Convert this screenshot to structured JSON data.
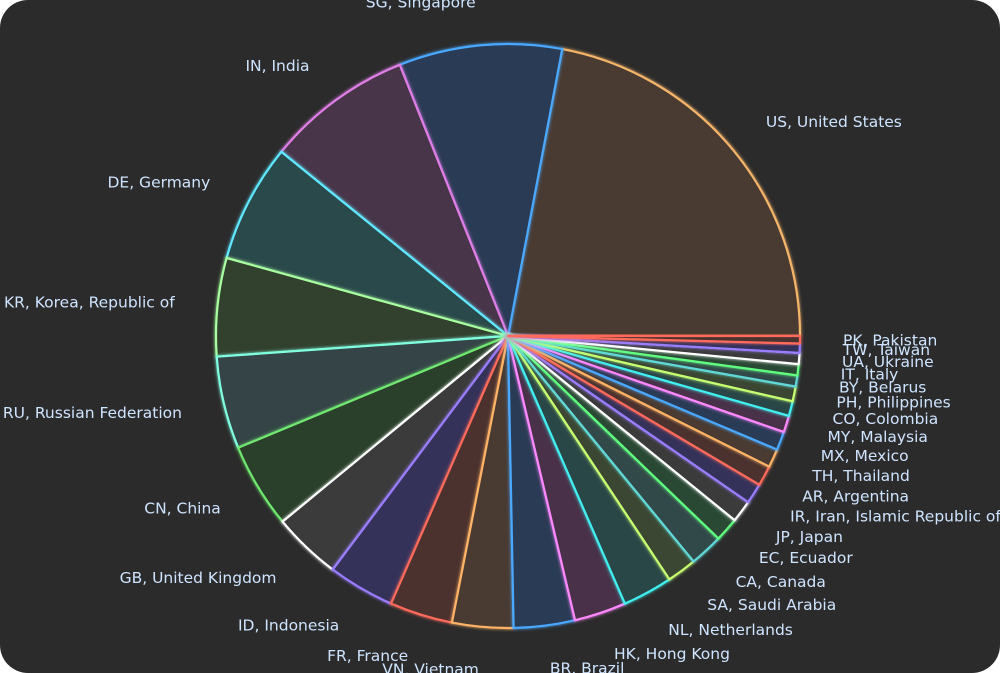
{
  "chart_data": {
    "type": "pie",
    "title": "",
    "start_angle_deg": 0,
    "direction": "counterclockwise",
    "slices": [
      {
        "label": "US, United States",
        "value": 21.5,
        "color": "#f5b56a",
        "fill": "#4a3a32"
      },
      {
        "label": "SG, Singapore",
        "value": 8.8,
        "color": "#48a8ff",
        "fill": "#2b3a55"
      },
      {
        "label": "IN, India",
        "value": 7.9,
        "color": "#e07ee8",
        "fill": "#4a3448"
      },
      {
        "label": "DE, Germany",
        "value": 6.4,
        "color": "#5fe8ff",
        "fill": "#2c4a4c"
      },
      {
        "label": "KR, Korea, Republic of",
        "value": 5.3,
        "color": "#a8ffa0",
        "fill": "#33402e"
      },
      {
        "label": "RU, Russian Federation",
        "value": 5.0,
        "color": "#80ffe0",
        "fill": "#344446"
      },
      {
        "label": "CN, China",
        "value": 4.6,
        "color": "#6fe86f",
        "fill": "#2b3f2b"
      },
      {
        "label": "GB, United Kingdom",
        "value": 3.7,
        "color": "#ffffff",
        "fill": "#3a3a3a"
      },
      {
        "label": "ID, Indonesia",
        "value": 3.6,
        "color": "#9a7cff",
        "fill": "#34335a"
      },
      {
        "label": "FR, France",
        "value": 3.4,
        "color": "#ff6a5a",
        "fill": "#4c302f"
      },
      {
        "label": "VN, Vietnam",
        "value": 3.3,
        "color": "#ffb366",
        "fill": "#4a3a30"
      },
      {
        "label": "BR, Brazil",
        "value": 3.3,
        "color": "#48a8ff",
        "fill": "#2c3b56"
      },
      {
        "label": "HK, Hong Kong",
        "value": 2.8,
        "color": "#ff88ff",
        "fill": "#4a3048"
      },
      {
        "label": "NL, Netherlands",
        "value": 2.7,
        "color": "#40f0f0",
        "fill": "#2b4646"
      },
      {
        "label": "SA, Saudi Arabia",
        "value": 1.6,
        "color": "#c8ff70",
        "fill": "#3a4630"
      },
      {
        "label": "CA, Canada",
        "value": 1.8,
        "color": "#60d8d8",
        "fill": "#32484a"
      },
      {
        "label": "EC, Ecuador",
        "value": 1.3,
        "color": "#60ff80",
        "fill": "#2c4a34"
      },
      {
        "label": "JP, Japan",
        "value": 1.2,
        "color": "#ffffff",
        "fill": "#3a3a3a"
      },
      {
        "label": "IR, Iran, Islamic Republic of",
        "value": 1.1,
        "color": "#9a7cff",
        "fill": "#34335a"
      },
      {
        "label": "AR, Argentina",
        "value": 1.1,
        "color": "#ff6a5a",
        "fill": "#4c302f"
      },
      {
        "label": "TH, Thailand",
        "value": 1.0,
        "color": "#ffb366",
        "fill": "#4a3a30"
      },
      {
        "label": "MX, Mexico",
        "value": 1.0,
        "color": "#48a8ff",
        "fill": "#2c3b56"
      },
      {
        "label": "MY, Malaysia",
        "value": 0.9,
        "color": "#ff88ff",
        "fill": "#4a3048"
      },
      {
        "label": "CO, Colombia",
        "value": 0.8,
        "color": "#40f0f0",
        "fill": "#2b4646"
      },
      {
        "label": "PH, Philippines",
        "value": 0.8,
        "color": "#c8ff70",
        "fill": "#3a4630"
      },
      {
        "label": "BY, Belarus",
        "value": 0.6,
        "color": "#60d8d8",
        "fill": "#32484a"
      },
      {
        "label": "IT, Italy",
        "value": 0.6,
        "color": "#60ff80",
        "fill": "#2c4a34"
      },
      {
        "label": "UA, Ukraine",
        "value": 0.6,
        "color": "#ffffff",
        "fill": "#3a3a3a"
      },
      {
        "label": "TW, Taiwan",
        "value": 0.5,
        "color": "#9a7cff",
        "fill": "#34335a"
      },
      {
        "label": "PK, Pakistan",
        "value": 0.4,
        "color": "#ff6a5a",
        "fill": "#4c302f"
      }
    ]
  }
}
